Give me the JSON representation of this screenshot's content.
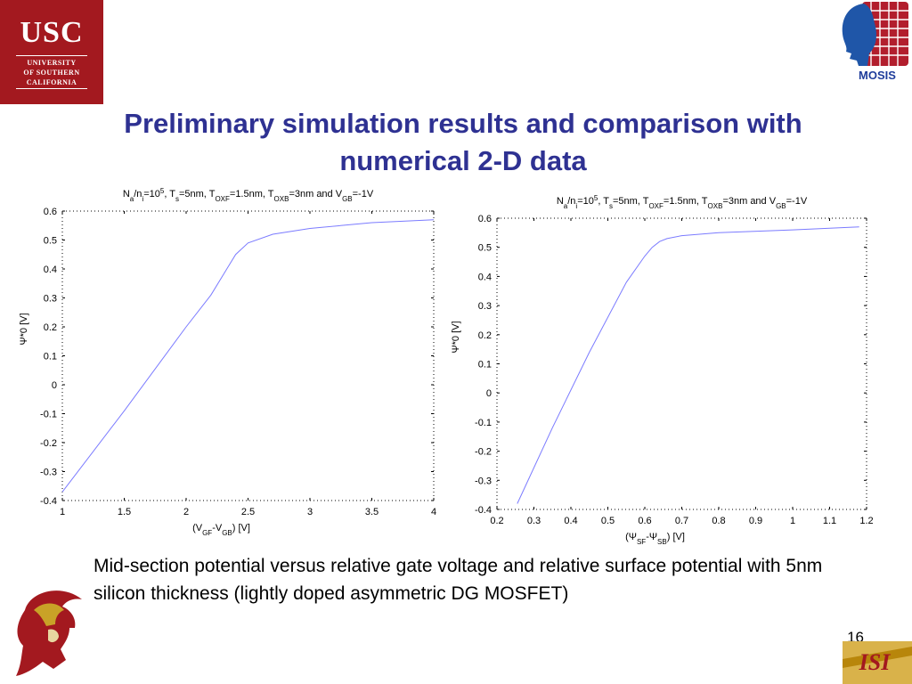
{
  "logos": {
    "usc": {
      "line1": "USC",
      "line2": "UNIVERSITY",
      "line3": "OF SOUTHERN",
      "line4": "CALIFORNIA",
      "color": "#a3191f"
    },
    "mosis": {
      "label": "MOSIS",
      "color": "#1f3d9b"
    },
    "isi": {
      "label": "ISI"
    }
  },
  "slide": {
    "title_line1": "Preliminary simulation results and comparison with",
    "title_line2": "numerical 2-D data",
    "caption": "Mid-section potential versus relative gate voltage and relative surface potential with 5nm silicon thickness (lightly doped asymmetric DG MOSFET)",
    "page_number": "16"
  },
  "chart_data": [
    {
      "type": "line",
      "title_parts": [
        "N",
        "a",
        "/n",
        "i",
        "=10",
        "5",
        ", T",
        "s",
        "=5nm, T",
        "OXF",
        "=1.5nm, T",
        "OXB",
        "=3nm and V",
        "GB",
        "=-1V"
      ],
      "xlabel_parts": [
        "(V",
        "GF",
        "-V",
        "GB",
        ") [V]"
      ],
      "ylabel": "Ψ*0 [V]",
      "xlim": [
        1,
        4
      ],
      "ylim": [
        -0.4,
        0.6
      ],
      "xticks": [
        "1",
        "1.5",
        "2",
        "2.5",
        "3",
        "3.5",
        "4"
      ],
      "yticks": [
        "0.6",
        "0.5",
        "0.4",
        "0.3",
        "0.2",
        "0.1",
        "0",
        "-0.1",
        "-0.2",
        "-0.3",
        "-0.4"
      ],
      "series": [
        {
          "color": "#7b7bff",
          "x": [
            1.0,
            1.5,
            2.0,
            2.2,
            2.3,
            2.4,
            2.5,
            2.7,
            3.0,
            3.5,
            4.0
          ],
          "y": [
            -0.37,
            -0.09,
            0.2,
            0.31,
            0.38,
            0.45,
            0.49,
            0.52,
            0.54,
            0.56,
            0.57
          ]
        }
      ]
    },
    {
      "type": "line",
      "title_parts": [
        "N",
        "a",
        "/n",
        "i",
        "=10",
        "5",
        ", T",
        "s",
        "=5nm, T",
        "OXF",
        "=1.5nm, T",
        "OXB",
        "=3nm and V",
        "GB",
        "=-1V"
      ],
      "xlabel_parts": [
        "(Ψ",
        "SF",
        "-Ψ",
        "SB",
        ") [V]"
      ],
      "ylabel": "Ψ*0 [V]",
      "xlim": [
        0.2,
        1.2
      ],
      "ylim": [
        -0.4,
        0.6
      ],
      "xticks": [
        "0.2",
        "0.3",
        "0.4",
        "0.5",
        "0.6",
        "0.7",
        "0.8",
        "0.9",
        "1",
        "1.1",
        "1.2"
      ],
      "yticks": [
        "0.6",
        "0.5",
        "0.4",
        "0.3",
        "0.2",
        "0.1",
        "0",
        "-0.1",
        "-0.2",
        "-0.3",
        "-0.4"
      ],
      "series": [
        {
          "color": "#7b7bff",
          "x": [
            0.255,
            0.35,
            0.45,
            0.55,
            0.6,
            0.62,
            0.64,
            0.66,
            0.7,
            0.8,
            1.0,
            1.18
          ],
          "y": [
            -0.38,
            -0.12,
            0.14,
            0.38,
            0.47,
            0.5,
            0.52,
            0.53,
            0.54,
            0.55,
            0.56,
            0.57
          ]
        }
      ]
    }
  ]
}
